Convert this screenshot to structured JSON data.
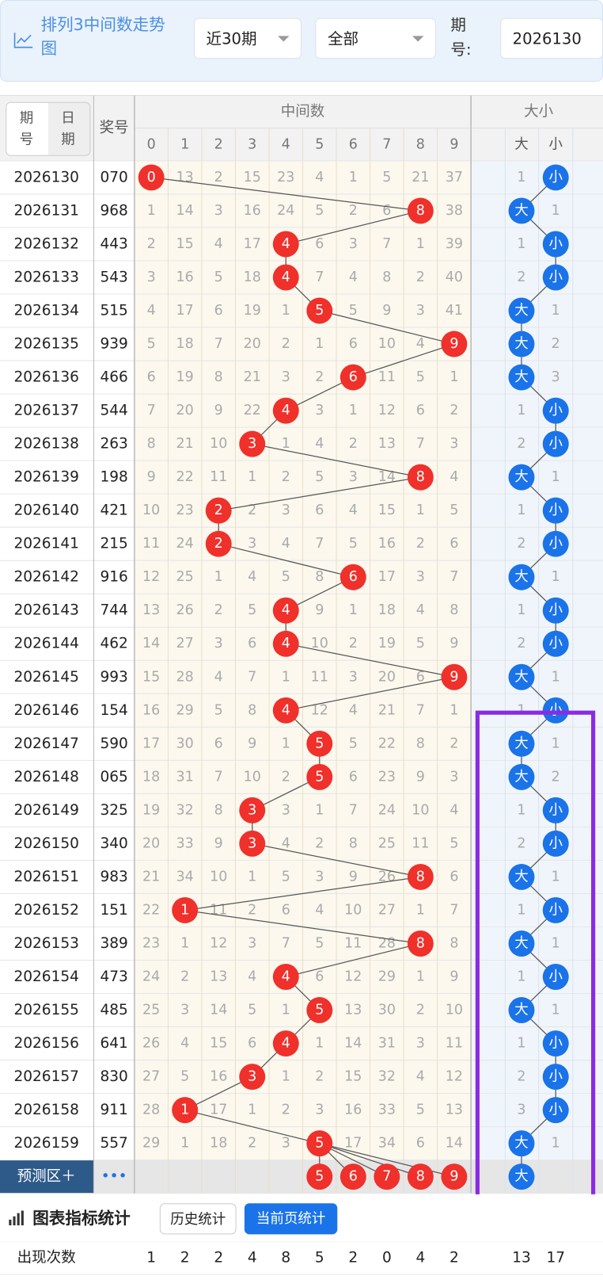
{
  "header": {
    "title": "排列3中间数走势图",
    "period_select": "近30期",
    "filter_select": "全部",
    "issue_label": "期号:",
    "issue_input": "2026130"
  },
  "table": {
    "col_issue": "期号",
    "col_date": "日期",
    "col_prize": "奖号",
    "group_middle": "中间数",
    "group_size": "大小",
    "digits": [
      0,
      1,
      2,
      3,
      4,
      5,
      6,
      7,
      8,
      9
    ],
    "size_labels": [
      "大",
      "小"
    ],
    "rows": [
      {
        "issue": "2026130",
        "prize": "070",
        "middle": [
          0,
          13,
          2,
          15,
          23,
          4,
          1,
          5,
          21,
          37
        ],
        "size": [
          1,
          "小"
        ]
      },
      {
        "issue": "2026131",
        "prize": "968",
        "middle": [
          1,
          14,
          3,
          16,
          24,
          5,
          2,
          6,
          8,
          38
        ],
        "size": [
          "大",
          1
        ]
      },
      {
        "issue": "2026132",
        "prize": "443",
        "middle": [
          2,
          15,
          4,
          17,
          4,
          6,
          3,
          7,
          1,
          39
        ],
        "size": [
          1,
          "小"
        ]
      },
      {
        "issue": "2026133",
        "prize": "543",
        "middle": [
          3,
          16,
          5,
          18,
          4,
          7,
          4,
          8,
          2,
          40
        ],
        "size": [
          2,
          "小"
        ]
      },
      {
        "issue": "2026134",
        "prize": "515",
        "middle": [
          4,
          17,
          6,
          19,
          1,
          5,
          5,
          9,
          3,
          41
        ],
        "size": [
          "大",
          1
        ]
      },
      {
        "issue": "2026135",
        "prize": "939",
        "middle": [
          5,
          18,
          7,
          20,
          2,
          1,
          6,
          10,
          4,
          9
        ],
        "size": [
          "大",
          2
        ]
      },
      {
        "issue": "2026136",
        "prize": "466",
        "middle": [
          6,
          19,
          8,
          21,
          3,
          2,
          6,
          11,
          5,
          1
        ],
        "size": [
          "大",
          3
        ]
      },
      {
        "issue": "2026137",
        "prize": "544",
        "middle": [
          7,
          20,
          9,
          22,
          4,
          3,
          1,
          12,
          6,
          2
        ],
        "size": [
          1,
          "小"
        ]
      },
      {
        "issue": "2026138",
        "prize": "263",
        "middle": [
          8,
          21,
          10,
          3,
          1,
          4,
          2,
          13,
          7,
          3
        ],
        "size": [
          2,
          "小"
        ]
      },
      {
        "issue": "2026139",
        "prize": "198",
        "middle": [
          9,
          22,
          11,
          1,
          2,
          5,
          3,
          14,
          8,
          4
        ],
        "size": [
          "大",
          1
        ]
      },
      {
        "issue": "2026140",
        "prize": "421",
        "middle": [
          10,
          23,
          2,
          2,
          3,
          6,
          4,
          15,
          1,
          5
        ],
        "size": [
          1,
          "小"
        ]
      },
      {
        "issue": "2026141",
        "prize": "215",
        "middle": [
          11,
          24,
          2,
          3,
          4,
          7,
          5,
          16,
          2,
          6
        ],
        "size": [
          2,
          "小"
        ]
      },
      {
        "issue": "2026142",
        "prize": "916",
        "middle": [
          12,
          25,
          1,
          4,
          5,
          8,
          6,
          17,
          3,
          7
        ],
        "size": [
          "大",
          1
        ]
      },
      {
        "issue": "2026143",
        "prize": "744",
        "middle": [
          13,
          26,
          2,
          5,
          4,
          9,
          1,
          18,
          4,
          8
        ],
        "size": [
          1,
          "小"
        ]
      },
      {
        "issue": "2026144",
        "prize": "462",
        "middle": [
          14,
          27,
          3,
          6,
          4,
          10,
          2,
          19,
          5,
          9
        ],
        "size": [
          2,
          "小"
        ]
      },
      {
        "issue": "2026145",
        "prize": "993",
        "middle": [
          15,
          28,
          4,
          7,
          1,
          11,
          3,
          20,
          6,
          9
        ],
        "size": [
          "大",
          1
        ]
      },
      {
        "issue": "2026146",
        "prize": "154",
        "middle": [
          16,
          29,
          5,
          8,
          4,
          12,
          4,
          21,
          7,
          1
        ],
        "size": [
          1,
          "小"
        ]
      },
      {
        "issue": "2026147",
        "prize": "590",
        "middle": [
          17,
          30,
          6,
          9,
          1,
          5,
          5,
          22,
          8,
          2
        ],
        "size": [
          "大",
          1
        ]
      },
      {
        "issue": "2026148",
        "prize": "065",
        "middle": [
          18,
          31,
          7,
          10,
          2,
          5,
          6,
          23,
          9,
          3
        ],
        "size": [
          "大",
          2
        ]
      },
      {
        "issue": "2026149",
        "prize": "325",
        "middle": [
          19,
          32,
          8,
          3,
          3,
          1,
          7,
          24,
          10,
          4
        ],
        "size": [
          1,
          "小"
        ]
      },
      {
        "issue": "2026150",
        "prize": "340",
        "middle": [
          20,
          33,
          9,
          3,
          4,
          2,
          8,
          25,
          11,
          5
        ],
        "size": [
          2,
          "小"
        ]
      },
      {
        "issue": "2026151",
        "prize": "983",
        "middle": [
          21,
          34,
          10,
          1,
          5,
          3,
          9,
          26,
          8,
          6
        ],
        "size": [
          "大",
          1
        ]
      },
      {
        "issue": "2026152",
        "prize": "151",
        "middle": [
          22,
          1,
          11,
          2,
          6,
          4,
          10,
          27,
          1,
          7
        ],
        "size": [
          1,
          "小"
        ]
      },
      {
        "issue": "2026153",
        "prize": "389",
        "middle": [
          23,
          1,
          12,
          3,
          7,
          5,
          11,
          28,
          8,
          8
        ],
        "size": [
          "大",
          1
        ]
      },
      {
        "issue": "2026154",
        "prize": "473",
        "middle": [
          24,
          2,
          13,
          4,
          4,
          6,
          12,
          29,
          1,
          9
        ],
        "size": [
          1,
          "小"
        ]
      },
      {
        "issue": "2026155",
        "prize": "485",
        "middle": [
          25,
          3,
          14,
          5,
          1,
          5,
          13,
          30,
          2,
          10
        ],
        "size": [
          "大",
          1
        ]
      },
      {
        "issue": "2026156",
        "prize": "641",
        "middle": [
          26,
          4,
          15,
          6,
          4,
          1,
          14,
          31,
          3,
          11
        ],
        "size": [
          1,
          "小"
        ]
      },
      {
        "issue": "2026157",
        "prize": "830",
        "middle": [
          27,
          5,
          16,
          3,
          1,
          2,
          15,
          32,
          4,
          12
        ],
        "size": [
          2,
          "小"
        ]
      },
      {
        "issue": "2026158",
        "prize": "911",
        "middle": [
          28,
          1,
          17,
          1,
          2,
          3,
          16,
          33,
          5,
          13
        ],
        "size": [
          3,
          "小"
        ]
      },
      {
        "issue": "2026159",
        "prize": "557",
        "middle": [
          29,
          1,
          18,
          2,
          3,
          5,
          17,
          34,
          6,
          14
        ],
        "size": [
          "大",
          1
        ]
      }
    ],
    "predict": {
      "label": "预测区＋",
      "more": "•••",
      "middle": [
        5,
        6,
        7,
        8,
        9
      ],
      "size": "大"
    }
  },
  "stats": {
    "title": "图表指标统计",
    "tabs": [
      "历史统计",
      "当前页统计"
    ],
    "row_label": "出现次数",
    "middle": [
      1,
      2,
      2,
      4,
      8,
      5,
      2,
      0,
      4,
      2
    ],
    "size": [
      13,
      17
    ]
  }
}
